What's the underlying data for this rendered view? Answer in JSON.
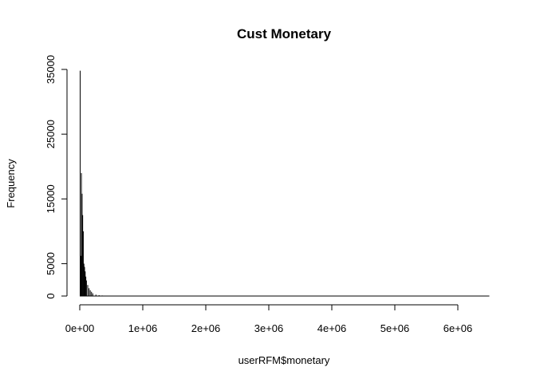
{
  "chart_data": {
    "type": "bar",
    "title": "Cust Monetary",
    "xlabel": "userRFM$monetary",
    "ylabel": "Frequency",
    "xlim": [
      0,
      6500000
    ],
    "ylim": [
      0,
      35000
    ],
    "x_ticks": [
      0,
      1000000,
      2000000,
      3000000,
      4000000,
      5000000,
      6000000
    ],
    "x_tick_labels": [
      "0e+00",
      "1e+06",
      "2e+06",
      "3e+06",
      "4e+06",
      "5e+06",
      "6e+06"
    ],
    "y_ticks": [
      0,
      5000,
      15000,
      25000,
      35000
    ],
    "y_tick_labels": [
      "0",
      "5000",
      "15000",
      "25000",
      "35000"
    ],
    "bar_color": "#000000",
    "bin_width": 10000,
    "bins_x": [
      0,
      10000,
      20000,
      30000,
      40000,
      50000,
      60000,
      70000,
      80000,
      90000,
      100000,
      120000,
      140000,
      160000,
      180000,
      200000,
      250000,
      300000,
      350000,
      400000,
      450000,
      500000
    ],
    "values": [
      34800,
      6200,
      19000,
      15800,
      12500,
      10000,
      5000,
      4500,
      3800,
      3000,
      2400,
      1700,
      1200,
      900,
      650,
      420,
      220,
      130,
      80,
      50,
      30,
      15
    ]
  }
}
